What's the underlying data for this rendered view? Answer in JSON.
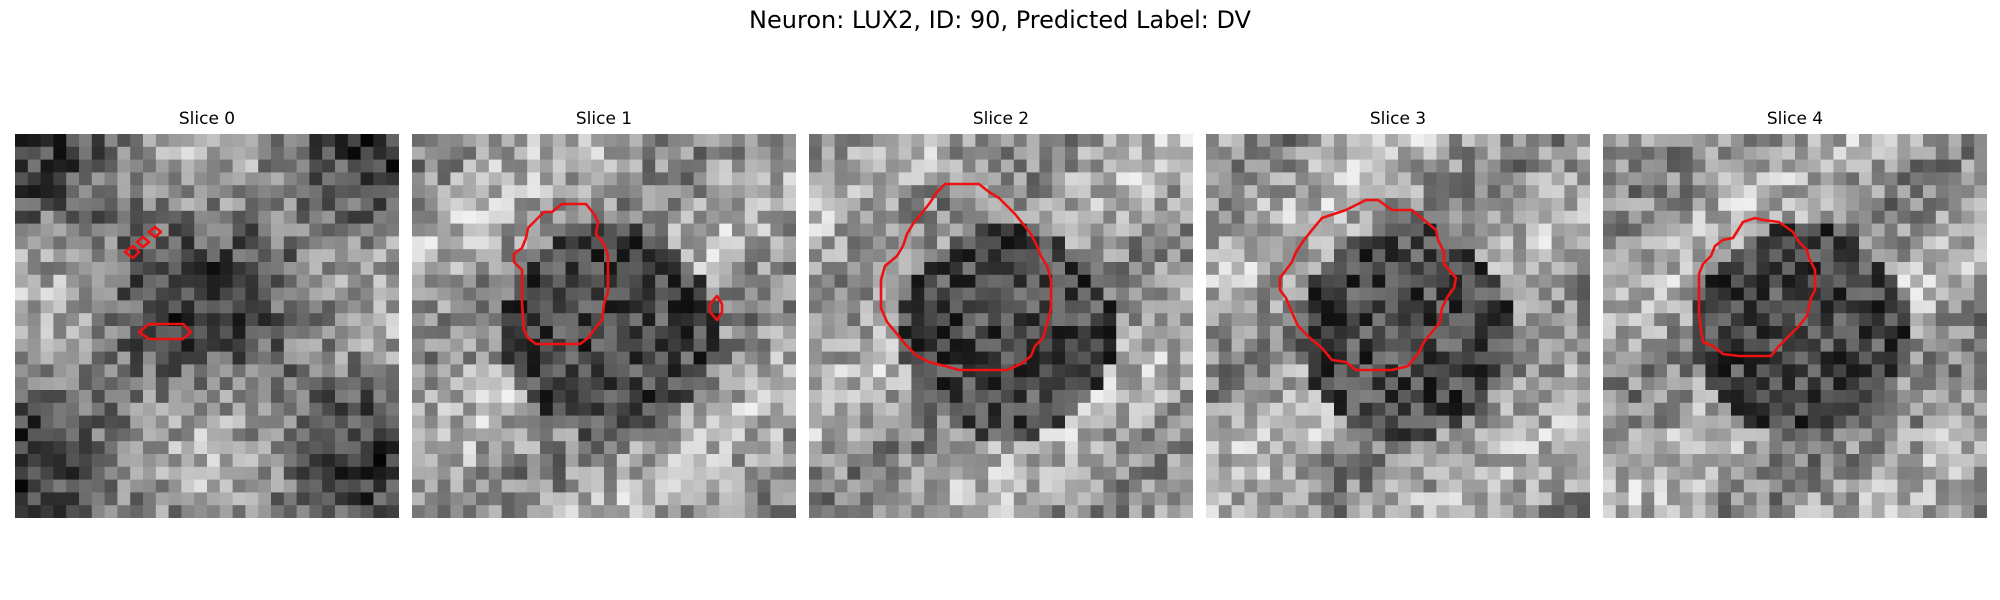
{
  "figure": {
    "title": "Neuron: LUX2, ID: 90, Predicted Label: DV"
  },
  "panels": [
    {
      "title": "Slice 0",
      "seed": 11,
      "center_dark": false
    },
    {
      "title": "Slice 1",
      "seed": 23,
      "center_dark": true
    },
    {
      "title": "Slice 2",
      "seed": 37,
      "center_dark": true
    },
    {
      "title": "Slice 3",
      "seed": 41,
      "center_dark": true
    },
    {
      "title": "Slice 4",
      "seed": 59,
      "center_dark": true
    }
  ],
  "colors": {
    "contour": "#ee1111"
  },
  "grid_size": 30
}
